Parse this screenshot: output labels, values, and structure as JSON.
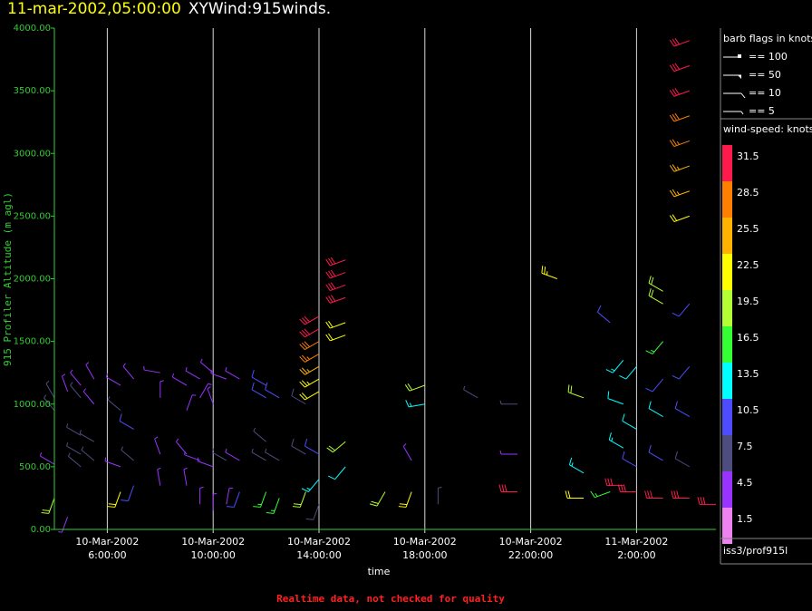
{
  "header": {
    "timestamp": "11-mar-2002,05:00:00",
    "product": "XYWind:915winds."
  },
  "footer_note": "Realtime data, not checked for quality",
  "station_label": "iss3/prof915l",
  "colors": {
    "background": "#000000",
    "y_axis": "#33cc33",
    "gridline": "#ffffff",
    "timestamp": "#ffff00",
    "footer": "#ff2020"
  },
  "legend": {
    "flags_title": "barb flags in knots",
    "flags": [
      {
        "label": "== 100",
        "knots": 100
      },
      {
        "label": "== 50",
        "knots": 50
      },
      {
        "label": "== 10",
        "knots": 10
      },
      {
        "label": "== 5",
        "knots": 5
      }
    ],
    "speed_title": "wind-speed: knots",
    "speed_bins": [
      {
        "label": "31.5",
        "color": "#ff1a4d"
      },
      {
        "label": "28.5",
        "color": "#ff8000"
      },
      {
        "label": "25.5",
        "color": "#ffb300"
      },
      {
        "label": "22.5",
        "color": "#ffff00"
      },
      {
        "label": "19.5",
        "color": "#b3ff33"
      },
      {
        "label": "16.5",
        "color": "#33ff33"
      },
      {
        "label": "13.5",
        "color": "#00ffff"
      },
      {
        "label": "10.5",
        "color": "#4d4dff"
      },
      {
        "label": "7.5",
        "color": "#4d4d80"
      },
      {
        "label": "4.5",
        "color": "#9933ff"
      },
      {
        "label": "1.5",
        "color": "#ee82ee"
      }
    ]
  },
  "chart_data": {
    "type": "scatter",
    "mark": "wind-barb",
    "xlabel": "time",
    "ylabel": "915 Profiler Altitude (m agl)",
    "ylim": [
      0,
      4000
    ],
    "xlim": [
      "2002-03-10T04:00",
      "2002-03-11T05:00"
    ],
    "y_ticks": [
      "0.00",
      "500.00",
      "1000.00",
      "1500.00",
      "2000.00",
      "2500.00",
      "3000.00",
      "3500.00",
      "4000.00"
    ],
    "x_ticks": [
      {
        "time": "2002-03-10T06:00",
        "line1": "10-Mar-2002",
        "line2": "6:00:00"
      },
      {
        "time": "2002-03-10T10:00",
        "line1": "10-Mar-2002",
        "line2": "10:00:00"
      },
      {
        "time": "2002-03-10T14:00",
        "line1": "10-Mar-2002",
        "line2": "14:00:00"
      },
      {
        "time": "2002-03-10T18:00",
        "line1": "10-Mar-2002",
        "line2": "18:00:00"
      },
      {
        "time": "2002-03-10T22:00",
        "line1": "10-Mar-2002",
        "line2": "22:00:00"
      },
      {
        "time": "2002-03-11T02:00",
        "line1": "11-Mar-2002",
        "line2": "2:00:00"
      }
    ],
    "grid": true,
    "barbs": [
      {
        "t": "2002-03-10T04:00",
        "alt": 1050,
        "speed": 6,
        "dir": 330
      },
      {
        "t": "2002-03-10T04:00",
        "alt": 950,
        "speed": 6,
        "dir": 320
      },
      {
        "t": "2002-03-10T04:00",
        "alt": 520,
        "speed": 5,
        "dir": 300
      },
      {
        "t": "2002-03-10T04:00",
        "alt": 250,
        "speed": 20,
        "dir": 200
      },
      {
        "t": "2002-03-10T04:30",
        "alt": 1100,
        "speed": 4,
        "dir": 340
      },
      {
        "t": "2002-03-10T04:30",
        "alt": 100,
        "speed": 3,
        "dir": 200
      },
      {
        "t": "2002-03-10T05:00",
        "alt": 1150,
        "speed": 5,
        "dir": 320
      },
      {
        "t": "2002-03-10T05:00",
        "alt": 1050,
        "speed": 6,
        "dir": 320
      },
      {
        "t": "2002-03-10T05:00",
        "alt": 750,
        "speed": 7,
        "dir": 300
      },
      {
        "t": "2002-03-10T05:00",
        "alt": 600,
        "speed": 7,
        "dir": 300
      },
      {
        "t": "2002-03-10T05:00",
        "alt": 500,
        "speed": 6,
        "dir": 310
      },
      {
        "t": "2002-03-10T05:30",
        "alt": 1200,
        "speed": 5,
        "dir": 330
      },
      {
        "t": "2002-03-10T05:30",
        "alt": 1000,
        "speed": 5,
        "dir": 320
      },
      {
        "t": "2002-03-10T05:30",
        "alt": 700,
        "speed": 7,
        "dir": 300
      },
      {
        "t": "2002-03-10T05:30",
        "alt": 550,
        "speed": 6,
        "dir": 310
      },
      {
        "t": "2002-03-10T06:30",
        "alt": 1150,
        "speed": 4,
        "dir": 300
      },
      {
        "t": "2002-03-10T06:30",
        "alt": 950,
        "speed": 7,
        "dir": 310
      },
      {
        "t": "2002-03-10T06:30",
        "alt": 500,
        "speed": 4,
        "dir": 290
      },
      {
        "t": "2002-03-10T06:30",
        "alt": 300,
        "speed": 21,
        "dir": 200
      },
      {
        "t": "2002-03-10T07:00",
        "alt": 1200,
        "speed": 4,
        "dir": 320
      },
      {
        "t": "2002-03-10T07:00",
        "alt": 800,
        "speed": 9,
        "dir": 300
      },
      {
        "t": "2002-03-10T07:00",
        "alt": 550,
        "speed": 6,
        "dir": 310
      },
      {
        "t": "2002-03-10T07:00",
        "alt": 350,
        "speed": 11,
        "dir": 200
      },
      {
        "t": "2002-03-10T08:00",
        "alt": 1250,
        "speed": 4,
        "dir": 280
      },
      {
        "t": "2002-03-10T08:00",
        "alt": 1050,
        "speed": 3,
        "dir": 0
      },
      {
        "t": "2002-03-10T08:00",
        "alt": 600,
        "speed": 4,
        "dir": 340
      },
      {
        "t": "2002-03-10T08:00",
        "alt": 350,
        "speed": 3,
        "dir": 350
      },
      {
        "t": "2002-03-10T09:00",
        "alt": 1150,
        "speed": 4,
        "dir": 300
      },
      {
        "t": "2002-03-10T09:00",
        "alt": 950,
        "speed": 5,
        "dir": 20
      },
      {
        "t": "2002-03-10T09:00",
        "alt": 600,
        "speed": 4,
        "dir": 320
      },
      {
        "t": "2002-03-10T09:00",
        "alt": 350,
        "speed": 4,
        "dir": 350
      },
      {
        "t": "2002-03-10T09:30",
        "alt": 1200,
        "speed": 5,
        "dir": 300
      },
      {
        "t": "2002-03-10T09:30",
        "alt": 1050,
        "speed": 3,
        "dir": 30
      },
      {
        "t": "2002-03-10T09:30",
        "alt": 550,
        "speed": 4,
        "dir": 290
      },
      {
        "t": "2002-03-10T09:30",
        "alt": 200,
        "speed": 3,
        "dir": 0
      },
      {
        "t": "2002-03-10T10:00",
        "alt": 1250,
        "speed": 4,
        "dir": 310
      },
      {
        "t": "2002-03-10T10:00",
        "alt": 1000,
        "speed": 4,
        "dir": 340
      },
      {
        "t": "2002-03-10T10:00",
        "alt": 500,
        "speed": 5,
        "dir": 290
      },
      {
        "t": "2002-03-10T10:00",
        "alt": 150,
        "speed": 3,
        "dir": 0
      },
      {
        "t": "2002-03-10T10:30",
        "alt": 1200,
        "speed": 4,
        "dir": 290
      },
      {
        "t": "2002-03-10T10:30",
        "alt": 550,
        "speed": 6,
        "dir": 300
      },
      {
        "t": "2002-03-10T10:30",
        "alt": 200,
        "speed": 4,
        "dir": 10
      },
      {
        "t": "2002-03-10T11:00",
        "alt": 1200,
        "speed": 5,
        "dir": 300
      },
      {
        "t": "2002-03-10T11:00",
        "alt": 550,
        "speed": 5,
        "dir": 300
      },
      {
        "t": "2002-03-10T11:00",
        "alt": 300,
        "speed": 9,
        "dir": 200
      },
      {
        "t": "2002-03-10T12:00",
        "alt": 1150,
        "speed": 9,
        "dir": 300
      },
      {
        "t": "2002-03-10T12:00",
        "alt": 1050,
        "speed": 9,
        "dir": 300
      },
      {
        "t": "2002-03-10T12:00",
        "alt": 700,
        "speed": 7,
        "dir": 310
      },
      {
        "t": "2002-03-10T12:00",
        "alt": 550,
        "speed": 7,
        "dir": 300
      },
      {
        "t": "2002-03-10T12:00",
        "alt": 300,
        "speed": 15,
        "dir": 200
      },
      {
        "t": "2002-03-10T12:30",
        "alt": 1050,
        "speed": 9,
        "dir": 300
      },
      {
        "t": "2002-03-10T12:30",
        "alt": 550,
        "speed": 7,
        "dir": 300
      },
      {
        "t": "2002-03-10T12:30",
        "alt": 250,
        "speed": 17,
        "dir": 200
      },
      {
        "t": "2002-03-10T13:30",
        "alt": 1000,
        "speed": 8,
        "dir": 300
      },
      {
        "t": "2002-03-10T13:30",
        "alt": 600,
        "speed": 8,
        "dir": 300
      },
      {
        "t": "2002-03-10T13:30",
        "alt": 300,
        "speed": 20,
        "dir": 200
      },
      {
        "t": "2002-03-10T14:00",
        "alt": 1700,
        "speed": 32,
        "dir": 240
      },
      {
        "t": "2002-03-10T14:00",
        "alt": 1600,
        "speed": 31,
        "dir": 240
      },
      {
        "t": "2002-03-10T14:00",
        "alt": 1500,
        "speed": 29,
        "dir": 240
      },
      {
        "t": "2002-03-10T14:00",
        "alt": 1400,
        "speed": 27,
        "dir": 240
      },
      {
        "t": "2002-03-10T14:00",
        "alt": 1300,
        "speed": 25,
        "dir": 240
      },
      {
        "t": "2002-03-10T14:00",
        "alt": 1200,
        "speed": 23,
        "dir": 240
      },
      {
        "t": "2002-03-10T14:00",
        "alt": 1100,
        "speed": 21,
        "dir": 240
      },
      {
        "t": "2002-03-10T14:00",
        "alt": 600,
        "speed": 9,
        "dir": 300
      },
      {
        "t": "2002-03-10T14:00",
        "alt": 400,
        "speed": 14,
        "dir": 220
      },
      {
        "t": "2002-03-10T14:00",
        "alt": 200,
        "speed": 8,
        "dir": 200
      },
      {
        "t": "2002-03-10T15:00",
        "alt": 2150,
        "speed": 32,
        "dir": 250
      },
      {
        "t": "2002-03-10T15:00",
        "alt": 2050,
        "speed": 32,
        "dir": 250
      },
      {
        "t": "2002-03-10T15:00",
        "alt": 1950,
        "speed": 31,
        "dir": 250
      },
      {
        "t": "2002-03-10T15:00",
        "alt": 1850,
        "speed": 30,
        "dir": 250
      },
      {
        "t": "2002-03-10T15:00",
        "alt": 1650,
        "speed": 22,
        "dir": 250
      },
      {
        "t": "2002-03-10T15:00",
        "alt": 1550,
        "speed": 22,
        "dir": 250
      },
      {
        "t": "2002-03-10T15:00",
        "alt": 700,
        "speed": 19,
        "dir": 230
      },
      {
        "t": "2002-03-10T15:00",
        "alt": 500,
        "speed": 12,
        "dir": 220
      },
      {
        "t": "2002-03-10T16:30",
        "alt": 300,
        "speed": 20,
        "dir": 210
      },
      {
        "t": "2002-03-10T17:30",
        "alt": 300,
        "speed": 21,
        "dir": 200
      },
      {
        "t": "2002-03-10T17:30",
        "alt": 550,
        "speed": 5,
        "dir": 330
      },
      {
        "t": "2002-03-10T18:00",
        "alt": 1150,
        "speed": 18,
        "dir": 250
      },
      {
        "t": "2002-03-10T18:00",
        "alt": 1000,
        "speed": 14,
        "dir": 260
      },
      {
        "t": "2002-03-10T18:30",
        "alt": 200,
        "speed": 6,
        "dir": 0
      },
      {
        "t": "2002-03-10T20:00",
        "alt": 1050,
        "speed": 7,
        "dir": 300
      },
      {
        "t": "2002-03-10T21:30",
        "alt": 1000,
        "speed": 7,
        "dir": 270
      },
      {
        "t": "2002-03-10T21:30",
        "alt": 600,
        "speed": 5,
        "dir": 270
      },
      {
        "t": "2002-03-10T21:30",
        "alt": 300,
        "speed": 31,
        "dir": 270
      },
      {
        "t": "2002-03-10T23:00",
        "alt": 2000,
        "speed": 23,
        "dir": 290
      },
      {
        "t": "2002-03-11T00:00",
        "alt": 1050,
        "speed": 18,
        "dir": 290
      },
      {
        "t": "2002-03-11T00:00",
        "alt": 450,
        "speed": 13,
        "dir": 300
      },
      {
        "t": "2002-03-11T00:00",
        "alt": 250,
        "speed": 22,
        "dir": 270
      },
      {
        "t": "2002-03-11T01:00",
        "alt": 1650,
        "speed": 11,
        "dir": 310
      },
      {
        "t": "2002-03-11T01:00",
        "alt": 300,
        "speed": 17,
        "dir": 250
      },
      {
        "t": "2002-03-11T01:30",
        "alt": 1350,
        "speed": 13,
        "dir": 220
      },
      {
        "t": "2002-03-11T01:30",
        "alt": 1000,
        "speed": 12,
        "dir": 290
      },
      {
        "t": "2002-03-11T01:30",
        "alt": 650,
        "speed": 14,
        "dir": 300
      },
      {
        "t": "2002-03-11T01:30",
        "alt": 350,
        "speed": 32,
        "dir": 270
      },
      {
        "t": "2002-03-11T02:00",
        "alt": 1300,
        "speed": 12,
        "dir": 220
      },
      {
        "t": "2002-03-11T02:00",
        "alt": 800,
        "speed": 12,
        "dir": 300
      },
      {
        "t": "2002-03-11T02:00",
        "alt": 500,
        "speed": 11,
        "dir": 300
      },
      {
        "t": "2002-03-11T02:00",
        "alt": 300,
        "speed": 32,
        "dir": 270
      },
      {
        "t": "2002-03-11T03:00",
        "alt": 1900,
        "speed": 19,
        "dir": 300
      },
      {
        "t": "2002-03-11T03:00",
        "alt": 1800,
        "speed": 20,
        "dir": 300
      },
      {
        "t": "2002-03-11T03:00",
        "alt": 1500,
        "speed": 17,
        "dir": 220
      },
      {
        "t": "2002-03-11T03:00",
        "alt": 1200,
        "speed": 11,
        "dir": 220
      },
      {
        "t": "2002-03-11T03:00",
        "alt": 900,
        "speed": 12,
        "dir": 300
      },
      {
        "t": "2002-03-11T03:00",
        "alt": 550,
        "speed": 9,
        "dir": 300
      },
      {
        "t": "2002-03-11T03:00",
        "alt": 250,
        "speed": 32,
        "dir": 270
      },
      {
        "t": "2002-03-11T04:00",
        "alt": 3900,
        "speed": 32,
        "dir": 250
      },
      {
        "t": "2002-03-11T04:00",
        "alt": 3700,
        "speed": 31,
        "dir": 250
      },
      {
        "t": "2002-03-11T04:00",
        "alt": 3500,
        "speed": 30,
        "dir": 250
      },
      {
        "t": "2002-03-11T04:00",
        "alt": 3300,
        "speed": 28,
        "dir": 250
      },
      {
        "t": "2002-03-11T04:00",
        "alt": 3100,
        "speed": 27,
        "dir": 250
      },
      {
        "t": "2002-03-11T04:00",
        "alt": 2900,
        "speed": 26,
        "dir": 250
      },
      {
        "t": "2002-03-11T04:00",
        "alt": 2700,
        "speed": 24,
        "dir": 250
      },
      {
        "t": "2002-03-11T04:00",
        "alt": 2500,
        "speed": 22,
        "dir": 250
      },
      {
        "t": "2002-03-11T04:00",
        "alt": 1800,
        "speed": 11,
        "dir": 220
      },
      {
        "t": "2002-03-11T04:00",
        "alt": 1300,
        "speed": 9,
        "dir": 220
      },
      {
        "t": "2002-03-11T04:00",
        "alt": 900,
        "speed": 10,
        "dir": 300
      },
      {
        "t": "2002-03-11T04:00",
        "alt": 500,
        "speed": 8,
        "dir": 300
      },
      {
        "t": "2002-03-11T04:00",
        "alt": 250,
        "speed": 32,
        "dir": 270
      },
      {
        "t": "2002-03-11T05:00",
        "alt": 200,
        "speed": 31,
        "dir": 270
      }
    ]
  }
}
